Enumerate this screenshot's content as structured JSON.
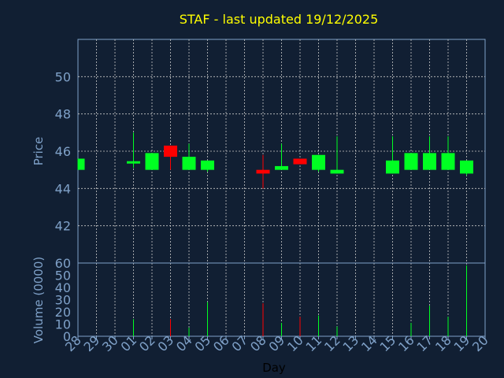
{
  "chart_data": {
    "type": "candlestick",
    "title": "STAF - last updated 19/12/2025",
    "xlabel": "Day",
    "x_ticks": [
      "28",
      "29",
      "30",
      "01",
      "02",
      "03",
      "04",
      "05",
      "06",
      "07",
      "08",
      "09",
      "10",
      "11",
      "12",
      "13",
      "14",
      "15",
      "16",
      "17",
      "18",
      "19",
      "20"
    ],
    "price": {
      "ylabel": "Price",
      "ylim": [
        40,
        52
      ],
      "yticks": [
        "42",
        "44",
        "46",
        "48",
        "50"
      ],
      "candles": [
        {
          "x": "28",
          "open": 45.0,
          "close": 45.6,
          "low": 45.0,
          "high": 45.6
        },
        {
          "x": "01",
          "open": 45.4,
          "close": 45.4,
          "low": 45.1,
          "high": 47.0
        },
        {
          "x": "02",
          "open": 45.0,
          "close": 45.9,
          "low": 45.0,
          "high": 45.9
        },
        {
          "x": "03",
          "open": 46.3,
          "close": 45.7,
          "low": 45.0,
          "high": 46.3
        },
        {
          "x": "04",
          "open": 45.0,
          "close": 45.7,
          "low": 45.0,
          "high": 46.4
        },
        {
          "x": "05",
          "open": 45.0,
          "close": 45.5,
          "low": 44.9,
          "high": 45.5
        },
        {
          "x": "08",
          "open": 45.0,
          "close": 44.8,
          "low": 44.0,
          "high": 45.8
        },
        {
          "x": "09",
          "open": 45.0,
          "close": 45.2,
          "low": 45.0,
          "high": 46.4
        },
        {
          "x": "10",
          "open": 45.6,
          "close": 45.3,
          "low": 45.3,
          "high": 45.6
        },
        {
          "x": "11",
          "open": 45.0,
          "close": 45.8,
          "low": 44.9,
          "high": 45.8
        },
        {
          "x": "12",
          "open": 44.8,
          "close": 45.0,
          "low": 44.8,
          "high": 46.8
        },
        {
          "x": "15",
          "open": 44.8,
          "close": 45.5,
          "low": 44.8,
          "high": 46.8
        },
        {
          "x": "16",
          "open": 45.0,
          "close": 45.9,
          "low": 45.0,
          "high": 45.9
        },
        {
          "x": "17",
          "open": 45.0,
          "close": 45.9,
          "low": 45.0,
          "high": 46.8
        },
        {
          "x": "18",
          "open": 45.0,
          "close": 45.9,
          "low": 45.0,
          "high": 46.8
        },
        {
          "x": "19",
          "open": 44.8,
          "close": 45.5,
          "low": 44.7,
          "high": 45.5
        }
      ]
    },
    "volume": {
      "ylabel": "Volume (0000)",
      "ylim": [
        0,
        60
      ],
      "yticks": [
        "0",
        "10",
        "20",
        "30",
        "40",
        "50",
        "60"
      ],
      "bars": [
        {
          "x": "01",
          "value": 14,
          "direction": "up"
        },
        {
          "x": "03",
          "value": 14,
          "direction": "down"
        },
        {
          "x": "04",
          "value": 7,
          "direction": "up"
        },
        {
          "x": "05",
          "value": 28,
          "direction": "up"
        },
        {
          "x": "08",
          "value": 27,
          "direction": "down"
        },
        {
          "x": "09",
          "value": 11,
          "direction": "up"
        },
        {
          "x": "10",
          "value": 16,
          "direction": "down"
        },
        {
          "x": "11",
          "value": 17,
          "direction": "up"
        },
        {
          "x": "12",
          "value": 8,
          "direction": "up"
        },
        {
          "x": "16",
          "value": 11,
          "direction": "up"
        },
        {
          "x": "17",
          "value": 25,
          "direction": "up"
        },
        {
          "x": "18",
          "value": 16,
          "direction": "up"
        },
        {
          "x": "19",
          "value": 58,
          "direction": "up"
        }
      ]
    },
    "grid": true,
    "colors": {
      "background": "#111f33",
      "plot_background": "#111f33",
      "axis": "#7fa1c8",
      "grid": "#c8c8c8",
      "title": "#ffff00",
      "up": "#00ff22",
      "down": "#ff0000",
      "day_tick": "#7fa1c8"
    }
  }
}
